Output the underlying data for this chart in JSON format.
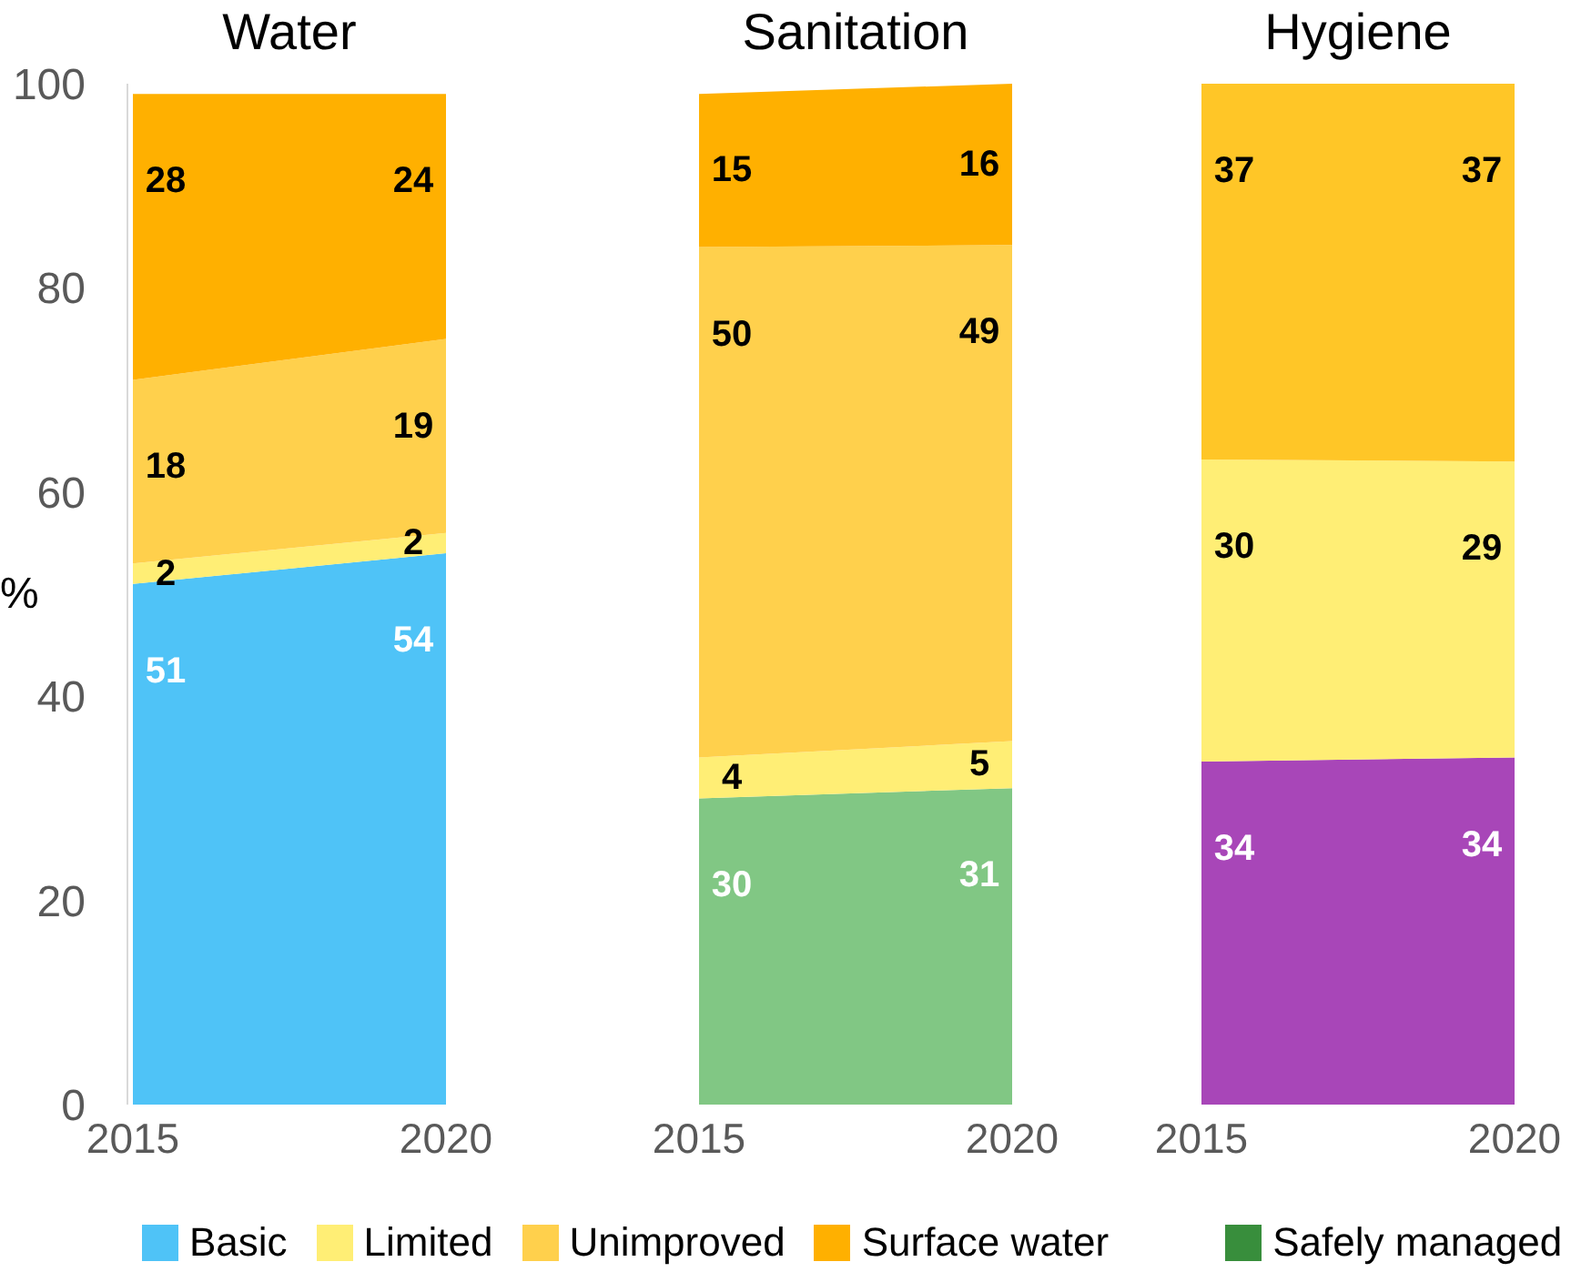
{
  "chart_data": [
    {
      "type": "area",
      "title": "Water",
      "ylabel": "%",
      "categories": [
        "2015",
        "2020"
      ],
      "stacked": true,
      "ylim": [
        0,
        100
      ],
      "yticks": [
        0,
        20,
        40,
        60,
        80,
        100
      ],
      "data_labels": true,
      "legend": "bottom",
      "series": [
        {
          "name": "Basic",
          "color": "#4fc3f7",
          "values": [
            51,
            54
          ]
        },
        {
          "name": "Limited",
          "color": "#ffee75",
          "values": [
            2,
            2
          ]
        },
        {
          "name": "Unimproved",
          "color": "#ffd04c",
          "values": [
            18,
            19
          ]
        },
        {
          "name": "Surface water",
          "color": "#ffb000",
          "values": [
            28,
            24
          ]
        }
      ]
    },
    {
      "type": "area",
      "title": "Sanitation",
      "categories": [
        "2015",
        "2020"
      ],
      "stacked": true,
      "ylim": [
        0,
        100
      ],
      "yticks": [
        0,
        20,
        40,
        60,
        80,
        100
      ],
      "tick_labels": "x",
      "legend": "bottom",
      "series": [
        {
          "color": "#81c784",
          "values": [
            30,
            31
          ],
          "value_labels": [
            "30",
            "31"
          ]
        },
        {
          "color": "#ffee75",
          "values": [
            4,
            4.6
          ],
          "value_labels": [
            "4",
            "5"
          ]
        },
        {
          "color": "#ffd04c",
          "values": [
            50,
            48.6
          ],
          "value_labels": [
            "50",
            "49"
          ]
        },
        {
          "color": "#ffb000",
          "values": [
            15,
            15.8
          ],
          "value_labels": [
            "15",
            "16"
          ]
        },
        {
          "name": "Safely managed",
          "color": "#388e3c",
          "values": [
            null,
            null
          ]
        }
      ]
    },
    {
      "type": "area",
      "title": "Hygiene",
      "categories": [
        "2015",
        "2020"
      ],
      "stacked": true,
      "ylim": [
        0,
        100
      ],
      "yticks": [
        0,
        20,
        40,
        60,
        80,
        100
      ],
      "tick_labels": "x",
      "series": [
        {
          "color": "#a846b8",
          "values": [
            33.6,
            34
          ],
          "value_labels": [
            "34",
            "34"
          ]
        },
        {
          "color": "#ffee75",
          "values": [
            29.6,
            29
          ],
          "value_labels": [
            "30",
            "29"
          ]
        },
        {
          "color": "#ffc627",
          "values": [
            36.8,
            37
          ],
          "value_labels": [
            "37",
            "37"
          ]
        }
      ]
    }
  ]
}
